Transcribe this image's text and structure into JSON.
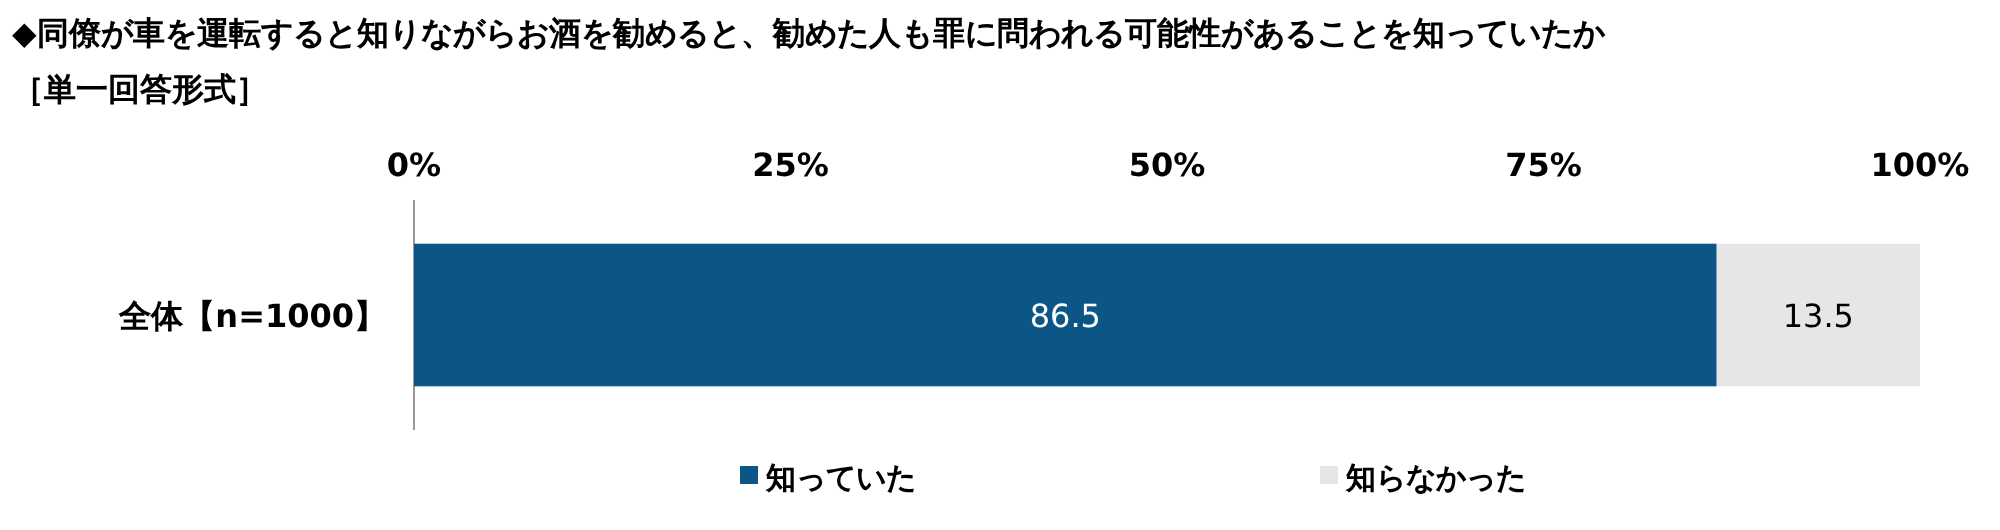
{
  "chart_data": {
    "type": "bar",
    "orientation": "horizontal",
    "stacked": true,
    "title": "◆同僚が車を運転すると知りながらお酒を勧めると、勧めた人も罪に問われる可能性があることを知っていたか",
    "subtitle": "［単一回答形式］",
    "categories": [
      "全体【n=1000】"
    ],
    "series": [
      {
        "name": "知っていた",
        "color": "#0b5687",
        "values": [
          86.5
        ]
      },
      {
        "name": "知らなかった",
        "color": "#e6e6e6",
        "values": [
          13.5
        ]
      }
    ],
    "xlim": [
      0,
      100
    ],
    "xticks": [
      {
        "value": 0,
        "label": "0%"
      },
      {
        "value": 25,
        "label": "25%"
      },
      {
        "value": 50,
        "label": "50%"
      },
      {
        "value": 75,
        "label": "75%"
      },
      {
        "value": 100,
        "label": "100%"
      }
    ],
    "data_labels": true,
    "legend": "bottom",
    "grid": false
  }
}
